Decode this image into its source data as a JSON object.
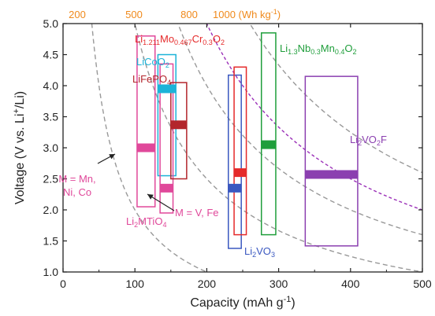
{
  "chart_data": {
    "type": "box-range",
    "xlabel": "Capacity (mAh g",
    "xlabel_sup": "-1",
    "xlabel_end": ")",
    "ylabel": "Voltage (V vs. Li",
    "ylabel_sup": "+",
    "ylabel_end": "/Li)",
    "xlim": [
      0,
      500
    ],
    "ylim": [
      1.0,
      5.0
    ],
    "xticks": [
      0,
      100,
      200,
      300,
      400,
      500
    ],
    "yticks": [
      1.0,
      1.5,
      2.0,
      2.5,
      3.0,
      3.5,
      4.0,
      4.5,
      5.0
    ],
    "energy_curves": [
      {
        "energy": 200,
        "label": "200",
        "color": "#999999",
        "dash": "6,4"
      },
      {
        "energy": 500,
        "label": "500",
        "color": "#999999",
        "dash": "6,4"
      },
      {
        "energy": 800,
        "label": "800",
        "color": "#999999",
        "dash": "6,4"
      },
      {
        "energy": 1000,
        "label": "1000 (Wh kg",
        "label_sup": "-1",
        "label_end": ")",
        "color": "#9b30b8",
        "dash": "4,3"
      }
    ],
    "extra_curves": [
      {
        "energy": 1300,
        "color": "#999999",
        "dash": "6,4"
      }
    ],
    "top_label_color": "#f08a1c",
    "materials": [
      {
        "name": "Li2MTiO4 (M = Mn, Ni, Co)",
        "color": "#e0489a",
        "cap_range": [
          103,
          128
        ],
        "v_range": [
          2.05,
          4.8
        ],
        "cap_avg": 115,
        "v_avg": 3.0
      },
      {
        "name": "LiCoO2",
        "color": "#1cb3d8",
        "cap_range": [
          132,
          157
        ],
        "v_range": [
          2.55,
          4.5
        ],
        "cap_avg": 145,
        "v_avg": 3.95
      },
      {
        "name": "Li2MTiO4 (M = V, Fe)",
        "color": "#e0489a",
        "cap_range": [
          135,
          153
        ],
        "v_range": [
          1.95,
          4.35
        ],
        "cap_avg": 145,
        "v_avg": 2.35
      },
      {
        "name": "LiFePO4",
        "color": "#b3262c",
        "cap_range": [
          150,
          172
        ],
        "v_range": [
          2.5,
          4.05
        ],
        "cap_avg": 162,
        "v_avg": 3.37
      },
      {
        "name": "Li2VO3",
        "color": "#3a58c0",
        "cap_range": [
          230,
          248
        ],
        "v_range": [
          1.38,
          4.17
        ],
        "cap_avg": 235,
        "v_avg": 2.35
      },
      {
        "name": "Li1.211Mo0.467Cr0.3O2",
        "color": "#e52a2a",
        "cap_range": [
          238,
          255
        ],
        "v_range": [
          1.6,
          4.3
        ],
        "cap_avg": 245,
        "v_avg": 2.6
      },
      {
        "name": "Li1.3Nb0.3Mn0.4O2",
        "color": "#1f9e3b",
        "cap_range": [
          276,
          296
        ],
        "v_range": [
          1.6,
          4.85
        ],
        "cap_avg": 285,
        "v_avg": 3.05
      },
      {
        "name": "Li2VO2F",
        "color": "#8b3fb0",
        "cap_range": [
          337,
          410
        ],
        "v_range": [
          1.42,
          4.15
        ],
        "cap_avg": 385,
        "v_avg": 2.57
      }
    ],
    "labels": {
      "limocr": {
        "parts": [
          "Li",
          "1.211",
          "Mo",
          "0.467",
          "Cr",
          "0.3",
          "O",
          "2"
        ],
        "color": "#e52a2a"
      },
      "licoo2": {
        "parts": [
          "LiCoO",
          "2"
        ],
        "color": "#1cb3d8"
      },
      "lifepo4": {
        "parts": [
          "LiFePO",
          "4"
        ],
        "color": "#b3262c"
      },
      "linbmn": {
        "parts": [
          "Li",
          "1.3",
          "Nb",
          "0.3",
          "Mn",
          "0.4",
          "O",
          "2"
        ],
        "color": "#1f9e3b"
      },
      "li2vo2f": {
        "parts": [
          "Li",
          "2",
          "VO",
          "2",
          "F"
        ],
        "color": "#8b3fb0"
      },
      "li2vo3": {
        "parts": [
          "Li",
          "2",
          "VO",
          "3"
        ],
        "color": "#3a58c0"
      },
      "li2mtio4": {
        "parts": [
          "Li",
          "2",
          "MTiO",
          "4"
        ],
        "color": "#e0489a"
      },
      "m_mn": {
        "lines": [
          "M = Mn,",
          "Ni, Co"
        ],
        "color": "#e0489a"
      },
      "m_v": {
        "text": "M = V, Fe",
        "color": "#e0489a"
      }
    }
  }
}
